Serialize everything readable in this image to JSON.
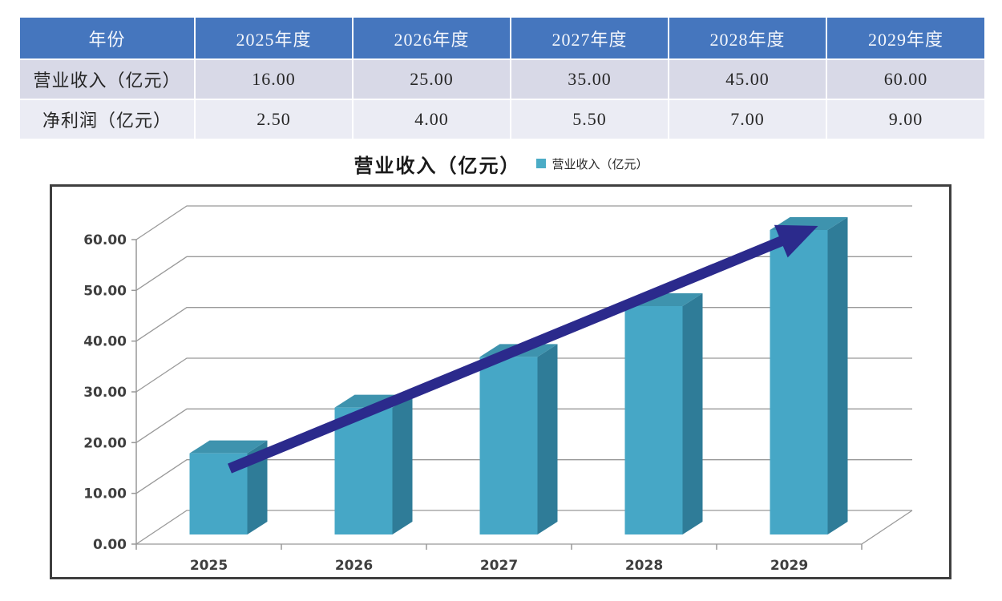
{
  "table": {
    "header": [
      "年份",
      "2025年度",
      "2026年度",
      "2027年度",
      "2028年度",
      "2029年度"
    ],
    "rows": [
      {
        "label": "营业收入（亿元）",
        "values": [
          "16.00",
          "25.00",
          "35.00",
          "45.00",
          "60.00"
        ]
      },
      {
        "label": "净利润（亿元）",
        "values": [
          "2.50",
          "4.00",
          "5.50",
          "7.00",
          "9.00"
        ]
      }
    ],
    "colors": {
      "header_bg": "#4576BE",
      "header_text": "#F4F7FC",
      "row_odd_bg": "#D8D9E7",
      "row_even_bg": "#EBECF4",
      "body_text": "#262626"
    }
  },
  "chart_data": {
    "type": "bar",
    "variant": "3d-column",
    "title": "营业收入（亿元）",
    "legend": [
      {
        "label": "营业收入（亿元）",
        "color": "#4BACC6"
      }
    ],
    "categories": [
      "2025",
      "2026",
      "2027",
      "2028",
      "2029"
    ],
    "values": [
      16,
      25,
      35,
      45,
      60
    ],
    "xlabel": "",
    "ylabel": "",
    "ylim": [
      0,
      60
    ],
    "ytick_step": 10,
    "ytick_labels": [
      "0.00",
      "10.00",
      "20.00",
      "30.00",
      "40.00",
      "50.00",
      "60.00"
    ],
    "grid": true,
    "legend_position": "top-right-of-title",
    "annotation": {
      "type": "trend-arrow",
      "description": "upward arrow from first bar to last bar"
    },
    "colors": {
      "bar_front": "#46A7C6",
      "bar_top": "#3E93AE",
      "bar_side": "#2F7C98",
      "gridline": "#999999",
      "axis_line": "#999999",
      "tick_text": "#3F3F3F",
      "plot_border": "#3F3F3F",
      "arrow": "#2B2A8C",
      "plot_bg": "#FFFFFF"
    }
  }
}
